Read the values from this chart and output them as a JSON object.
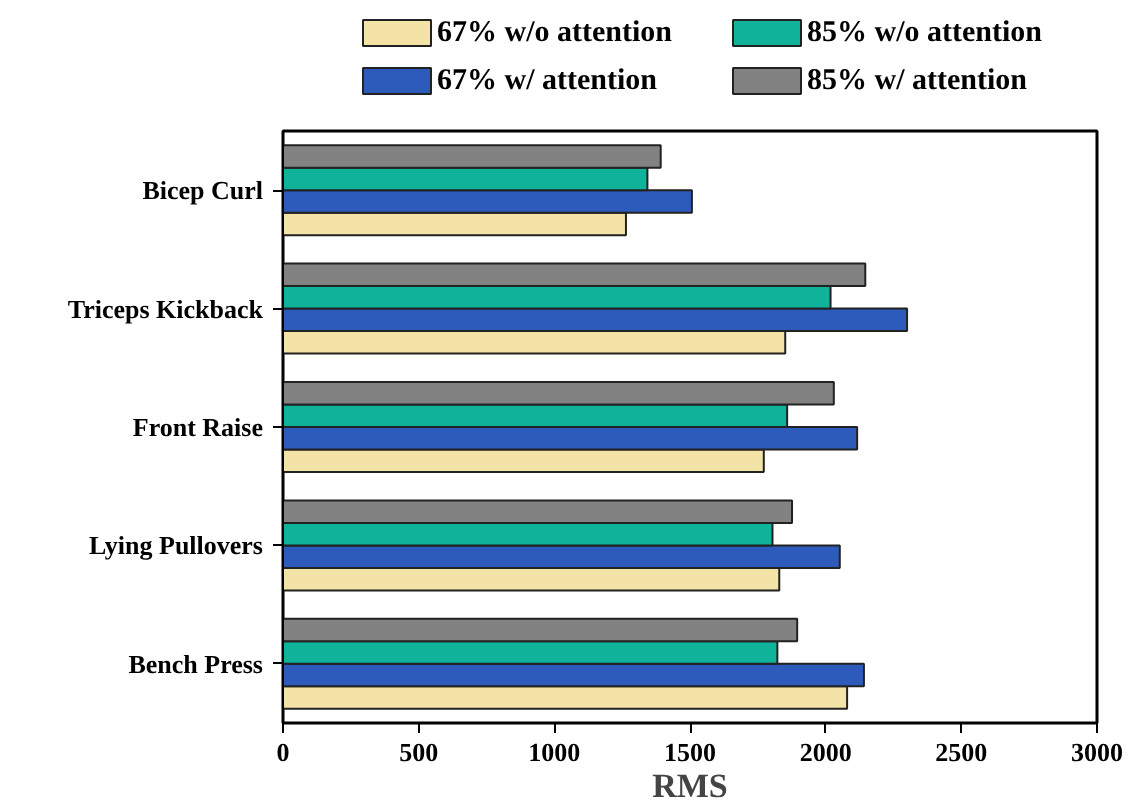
{
  "chart_data": {
    "type": "bar",
    "orientation": "horizontal",
    "xlabel": "RMS",
    "categories": [
      "Bicep Curl",
      "Triceps Kickback",
      "Front Raise",
      "Lying Pullovers",
      "Bench Press"
    ],
    "series": [
      {
        "name": "67% w/o attention",
        "color": "#f3e3a6",
        "values": [
          1264,
          1851,
          1772,
          1829,
          2079
        ]
      },
      {
        "name": "67% w/ attention",
        "color": "#2d5bbb",
        "values": [
          1507,
          2300,
          2116,
          2052,
          2141
        ]
      },
      {
        "name": "85% w/o attention",
        "color": "#0fb39a",
        "values": [
          1343,
          2018,
          1858,
          1804,
          1822
        ]
      },
      {
        "name": "85% w/ attention",
        "color": "#828282",
        "values": [
          1392,
          2146,
          2030,
          1876,
          1895
        ]
      }
    ],
    "xlim": [
      0,
      3000
    ],
    "xticks": [
      0,
      500,
      1000,
      1500,
      2000,
      2500,
      3000
    ],
    "grid": false,
    "legend": "top"
  }
}
